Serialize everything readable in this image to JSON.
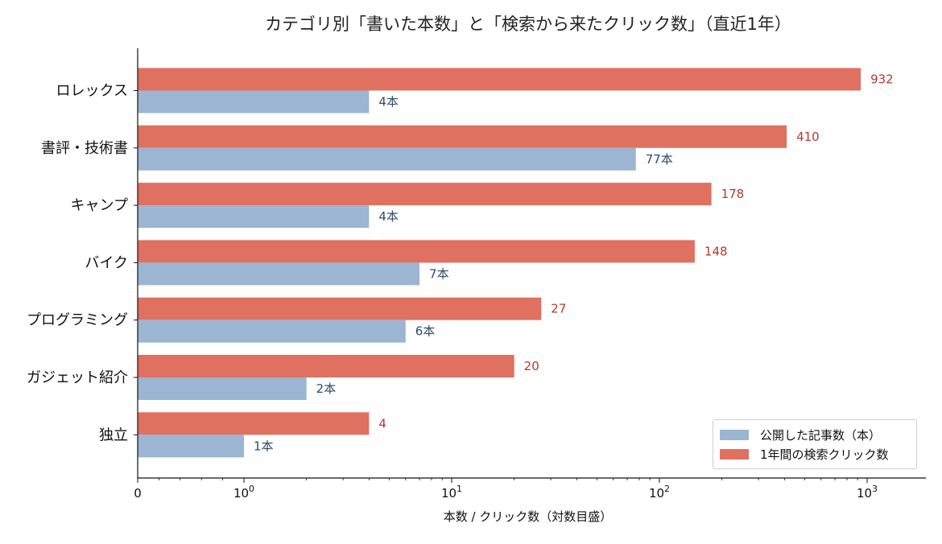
{
  "chart_data": {
    "type": "bar",
    "orientation": "horizontal",
    "title": "カテゴリ別「書いた本数」と「検索から来たクリック数」（直近1年）",
    "xlabel": "本数 / クリック数（対数目盛）",
    "xscale": "log",
    "xlim": [
      0,
      2000
    ],
    "x_ticks": [
      {
        "value": 0,
        "label": "0"
      },
      {
        "value": 1,
        "label": "10",
        "exp": "0"
      },
      {
        "value": 10,
        "label": "10",
        "exp": "1"
      },
      {
        "value": 100,
        "label": "10",
        "exp": "2"
      },
      {
        "value": 1000,
        "label": "10",
        "exp": "3"
      }
    ],
    "categories": [
      "ロレックス",
      "書評・技術書",
      "キャンプ",
      "バイク",
      "プログラミング",
      "ガジェット紹介",
      "独立"
    ],
    "series": [
      {
        "name": "公開した記事数（本）",
        "color": "#9bb5d3",
        "values": [
          4,
          77,
          4,
          7,
          6,
          2,
          1
        ],
        "labels": [
          "4本",
          "77本",
          "4本",
          "7本",
          "6本",
          "2本",
          "1本"
        ]
      },
      {
        "name": "1年間の検索クリック数",
        "color": "#e07060",
        "values": [
          932,
          410,
          178,
          148,
          27,
          20,
          4
        ],
        "labels": [
          "932",
          "410",
          "178",
          "148",
          "27",
          "20",
          "4"
        ]
      }
    ],
    "legend_position": "lower-right",
    "grid": false
  }
}
